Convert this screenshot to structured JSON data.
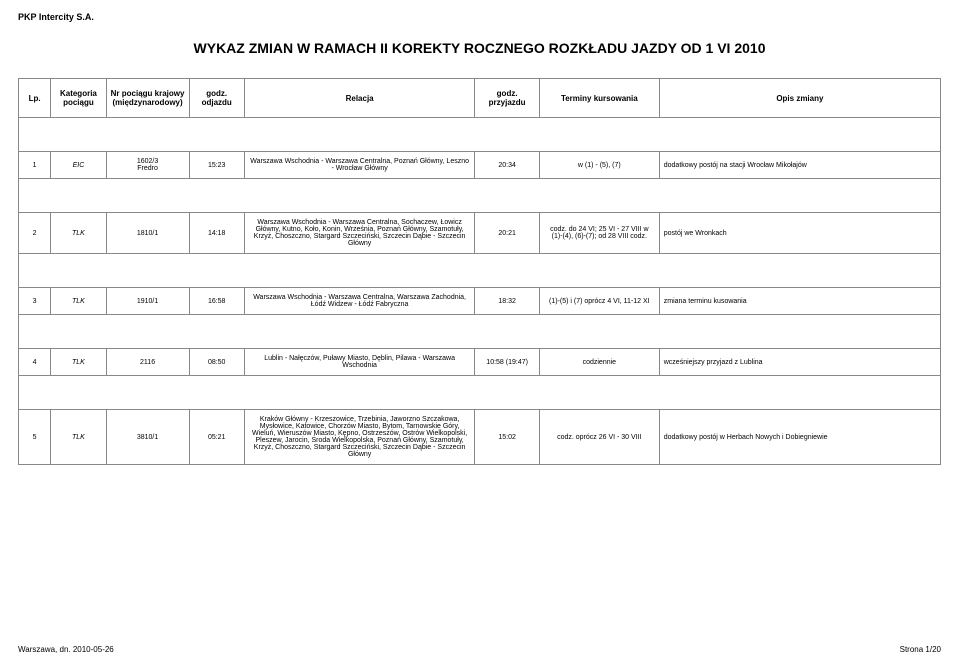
{
  "company": "PKP Intercity S.A.",
  "title": "WYKAZ ZMIAN W RAMACH II KOREKTY ROCZNEGO ROZKŁADU JAZDY OD 1 VI 2010",
  "columns": {
    "lp": "Lp.",
    "category": "Kategoria pociągu",
    "number": "Nr pociągu krajowy (międzynarodowy)",
    "departure": "godz. odjazdu",
    "relation": "Relacja",
    "arrival": "godz. przyjazdu",
    "terms": "Terminy kursowania",
    "description": "Opis zmiany"
  },
  "rows": [
    {
      "lp": "1",
      "cat": "EIC",
      "num_a": "1602/3",
      "num_b": "Fredro",
      "dep": "15:23",
      "rel": "Warszawa Wschodnia - Warszawa Centralna, Poznań Główny, Leszno - Wrocław Główny",
      "arr": "20:34",
      "term": "w (1) - (5), (7)",
      "desc": "dodatkowy postój na stacji Wrocław Mikołajów"
    },
    {
      "lp": "2",
      "cat": "TLK",
      "num_a": "1810/1",
      "num_b": "",
      "dep": "14:18",
      "rel": "Warszawa Wschodnia - Warszawa Centralna, Sochaczew, Łowicz Główny, Kutno, Koło, Konin, Września, Poznań Główny, Szamotuły, Krzyż, Choszczno, Stargard Szczeciński, Szczecin Dąbie - Szczecin Główny",
      "arr": "20:21",
      "term": "codz. do 24 VI; 25 VI - 27 VIII w (1)-(4), (6)-(7); od 28 VIII codz.",
      "desc": "postój we Wronkach"
    },
    {
      "lp": "3",
      "cat": "TLK",
      "num_a": "1910/1",
      "num_b": "",
      "dep": "16:58",
      "rel": "Warszawa Wschodnia - Warszawa Centralna, Warszawa Zachodnia, Łódź Widzew - Łódź Fabryczna",
      "arr": "18:32",
      "term": "(1)-(5) i (7) oprócz 4 VI, 11-12 XI",
      "desc": "zmiana terminu kusowania"
    },
    {
      "lp": "4",
      "cat": "TLK",
      "num_a": "2116",
      "num_b": "",
      "dep": "08:50",
      "rel": "Lublin - Nałęczów, Puławy Miasto, Dęblin, Pilawa - Warszawa Wschodnia",
      "arr": "10:58 (19:47)",
      "term": "codziennie",
      "desc": "wcześniejszy przyjazd z Lublina"
    },
    {
      "lp": "5",
      "cat": "TLK",
      "num_a": "3810/1",
      "num_b": "",
      "dep": "05:21",
      "rel": "Kraków Główny - Krzeszowice, Trzebinia, Jaworzno Szczakowa, Mysłowice, Katowice, Chorzów Miasto, Bytom, Tarnowskie Góry, Wieluń, Wieruszów Miasto, Kępno, Ostrzeszów, Ostrów Wielkopolski, Pleszew, Jarocin, Środa Wielkopolska, Poznań Główny, Szamotuły, Krzyż, Choszczno, Stargard Szczeciński, Szczecin Dąbie - Szczecin Główny",
      "arr": "15:02",
      "term": "codz. oprócz 26 VI - 30 VIII",
      "desc": "dodatkowy postój w Herbach Nowych i Dobiegniewie"
    }
  ],
  "footer": {
    "left": "Warszawa, dn. 2010-05-26",
    "right": "Strona 1/20"
  }
}
